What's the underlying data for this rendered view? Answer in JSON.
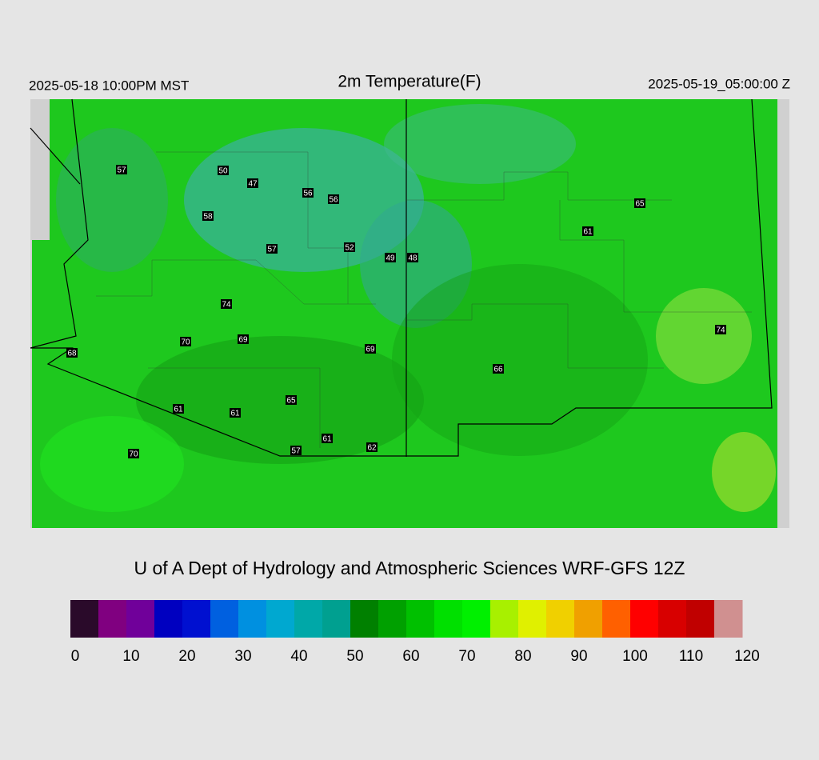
{
  "header": {
    "left": "2025-05-18 10:00PM MST",
    "title": "2m Temperature(F)",
    "right": "2025-05-19_05:00:00 Z"
  },
  "stations": [
    57,
    50,
    47,
    56,
    56,
    58,
    57,
    52,
    49,
    48,
    61,
    65,
    74,
    70,
    69,
    69,
    68,
    66,
    74,
    65,
    61,
    61,
    61,
    57,
    62,
    70
  ],
  "credit": "U of A Dept of Hydrology and Atmospheric Sciences WRF-GFS 12Z",
  "colorbar": {
    "range": [
      0,
      120
    ],
    "ticks": [
      0,
      10,
      20,
      30,
      40,
      50,
      60,
      70,
      80,
      90,
      100,
      110,
      120
    ],
    "colors": [
      "#2a0a2a",
      "#800080",
      "#70009a",
      "#0000c0",
      "#0010d0",
      "#0060e0",
      "#0090e0",
      "#00a8d0",
      "#00a8a8",
      "#00a090",
      "#008000",
      "#00a000",
      "#00c000",
      "#00e000",
      "#00f000",
      "#a8f000",
      "#e0f000",
      "#f0d000",
      "#f0a000",
      "#ff6000",
      "#ff0000",
      "#d80000",
      "#c00000",
      "#d09090"
    ]
  }
}
